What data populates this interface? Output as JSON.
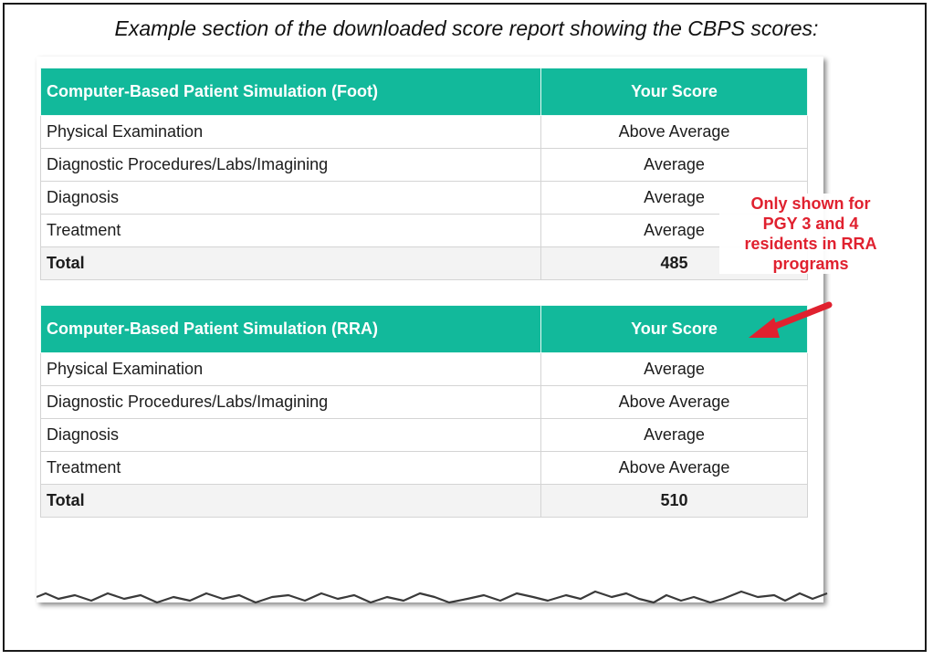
{
  "caption": "Example section of the downloaded score report showing the CBPS scores:",
  "tables": [
    {
      "header_label": "Computer-Based Patient Simulation (Foot)",
      "header_score": "Your Score",
      "rows": [
        {
          "label": "Physical Examination",
          "value": "Above Average"
        },
        {
          "label": "Diagnostic Procedures/Labs/Imagining",
          "value": "Average"
        },
        {
          "label": "Diagnosis",
          "value": "Average"
        },
        {
          "label": "Treatment",
          "value": "Average"
        }
      ],
      "total_label": "Total",
      "total_value": "485"
    },
    {
      "header_label": "Computer-Based Patient Simulation (RRA)",
      "header_score": "Your Score",
      "rows": [
        {
          "label": "Physical Examination",
          "value": "Average"
        },
        {
          "label": "Diagnostic Procedures/Labs/Imagining",
          "value": "Above Average"
        },
        {
          "label": "Diagnosis",
          "value": "Average"
        },
        {
          "label": "Treatment",
          "value": "Above Average"
        }
      ],
      "total_label": "Total",
      "total_value": "510"
    }
  ],
  "annotation": {
    "lines": [
      "Only shown for",
      "PGY 3 and 4",
      "residents in RRA",
      "programs"
    ]
  },
  "colors": {
    "header_bg": "#12b99b",
    "annotation": "#e0212f"
  }
}
